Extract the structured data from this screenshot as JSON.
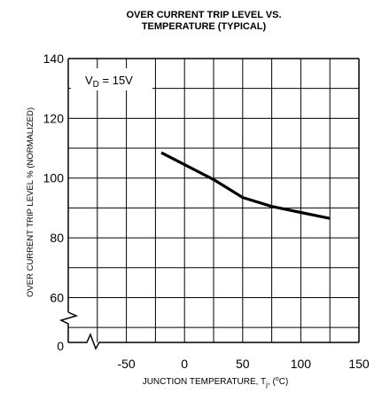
{
  "chart_data": {
    "type": "line",
    "title_lines": [
      "OVER CURRENT TRIP LEVEL VS.",
      "TEMPERATURE (TYPICAL)"
    ],
    "xlabel_parts": {
      "prefix": "JUNCTION TEMPERATURE, T",
      "subscript": "j",
      "mid": ", (",
      "superscript": "o",
      "suffix": "C)"
    },
    "ylabel": "OVER CURRENT TRIP LEVEL % (NORMALIZED)",
    "annotation_parts": {
      "prefix": "V",
      "subscript": "D",
      "suffix": " = 15V"
    },
    "x_ticks": [
      {
        "value": -50,
        "label": "-50"
      },
      {
        "value": 0,
        "label": "0"
      },
      {
        "value": 50,
        "label": "50"
      },
      {
        "value": 100,
        "label": "100"
      },
      {
        "value": 150,
        "label": "150"
      }
    ],
    "y_ticks": [
      {
        "value": 60,
        "label": "60"
      },
      {
        "value": 80,
        "label": "80"
      },
      {
        "value": 100,
        "label": "100"
      },
      {
        "value": 120,
        "label": "120"
      },
      {
        "value": 140,
        "label": "140"
      }
    ],
    "y_zero_label": "0",
    "xlim": [
      -100,
      150
    ],
    "ylim": [
      45,
      140
    ],
    "y_axis_break": true,
    "grid": true,
    "series": [
      {
        "x": [
          -20,
          0,
          25,
          50,
          75,
          100,
          125
        ],
        "y": [
          108.5,
          104.5,
          99.5,
          93.5,
          90.5,
          88.5,
          86.5
        ]
      }
    ]
  }
}
